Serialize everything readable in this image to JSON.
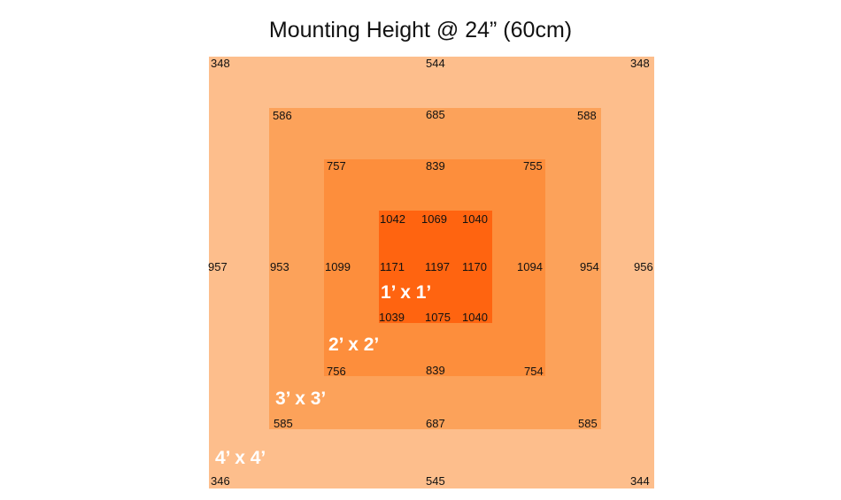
{
  "title": "Mounting Height @ 24” (60cm)",
  "colors": {
    "zone_4x4": "#FDBE8C",
    "zone_3x3": "#FCA25A",
    "zone_2x2": "#FD8E3C",
    "zone_1x1": "#FF6410"
  },
  "zones": {
    "z4": {
      "label": "4’ x 4’",
      "readings": {
        "top_left": "348",
        "top_center": "544",
        "top_right": "348",
        "mid_left": "957",
        "mid_right": "956",
        "bottom_left": "346",
        "bottom_center": "545",
        "bottom_right": "344"
      }
    },
    "z3": {
      "label": "3’ x 3’",
      "readings": {
        "top_left": "586",
        "top_center": "685",
        "top_right": "588",
        "mid_left": "953",
        "mid_right": "954",
        "bottom_left": "585",
        "bottom_center": "687",
        "bottom_right": "585"
      }
    },
    "z2": {
      "label": "2’ x 2’",
      "readings": {
        "top_left": "757",
        "top_center": "839",
        "top_right": "755",
        "mid_left": "1099",
        "mid_right": "1094",
        "bottom_left": "756",
        "bottom_center": "839",
        "bottom_right": "754"
      }
    },
    "z1": {
      "label": "1’ x 1’",
      "readings": {
        "top_left": "1042",
        "top_center": "1069",
        "top_right": "1040",
        "mid_left": "1171",
        "center": "1197",
        "mid_right": "1170",
        "bottom_left": "1039",
        "bottom_center": "1075",
        "bottom_right": "1040"
      }
    }
  }
}
